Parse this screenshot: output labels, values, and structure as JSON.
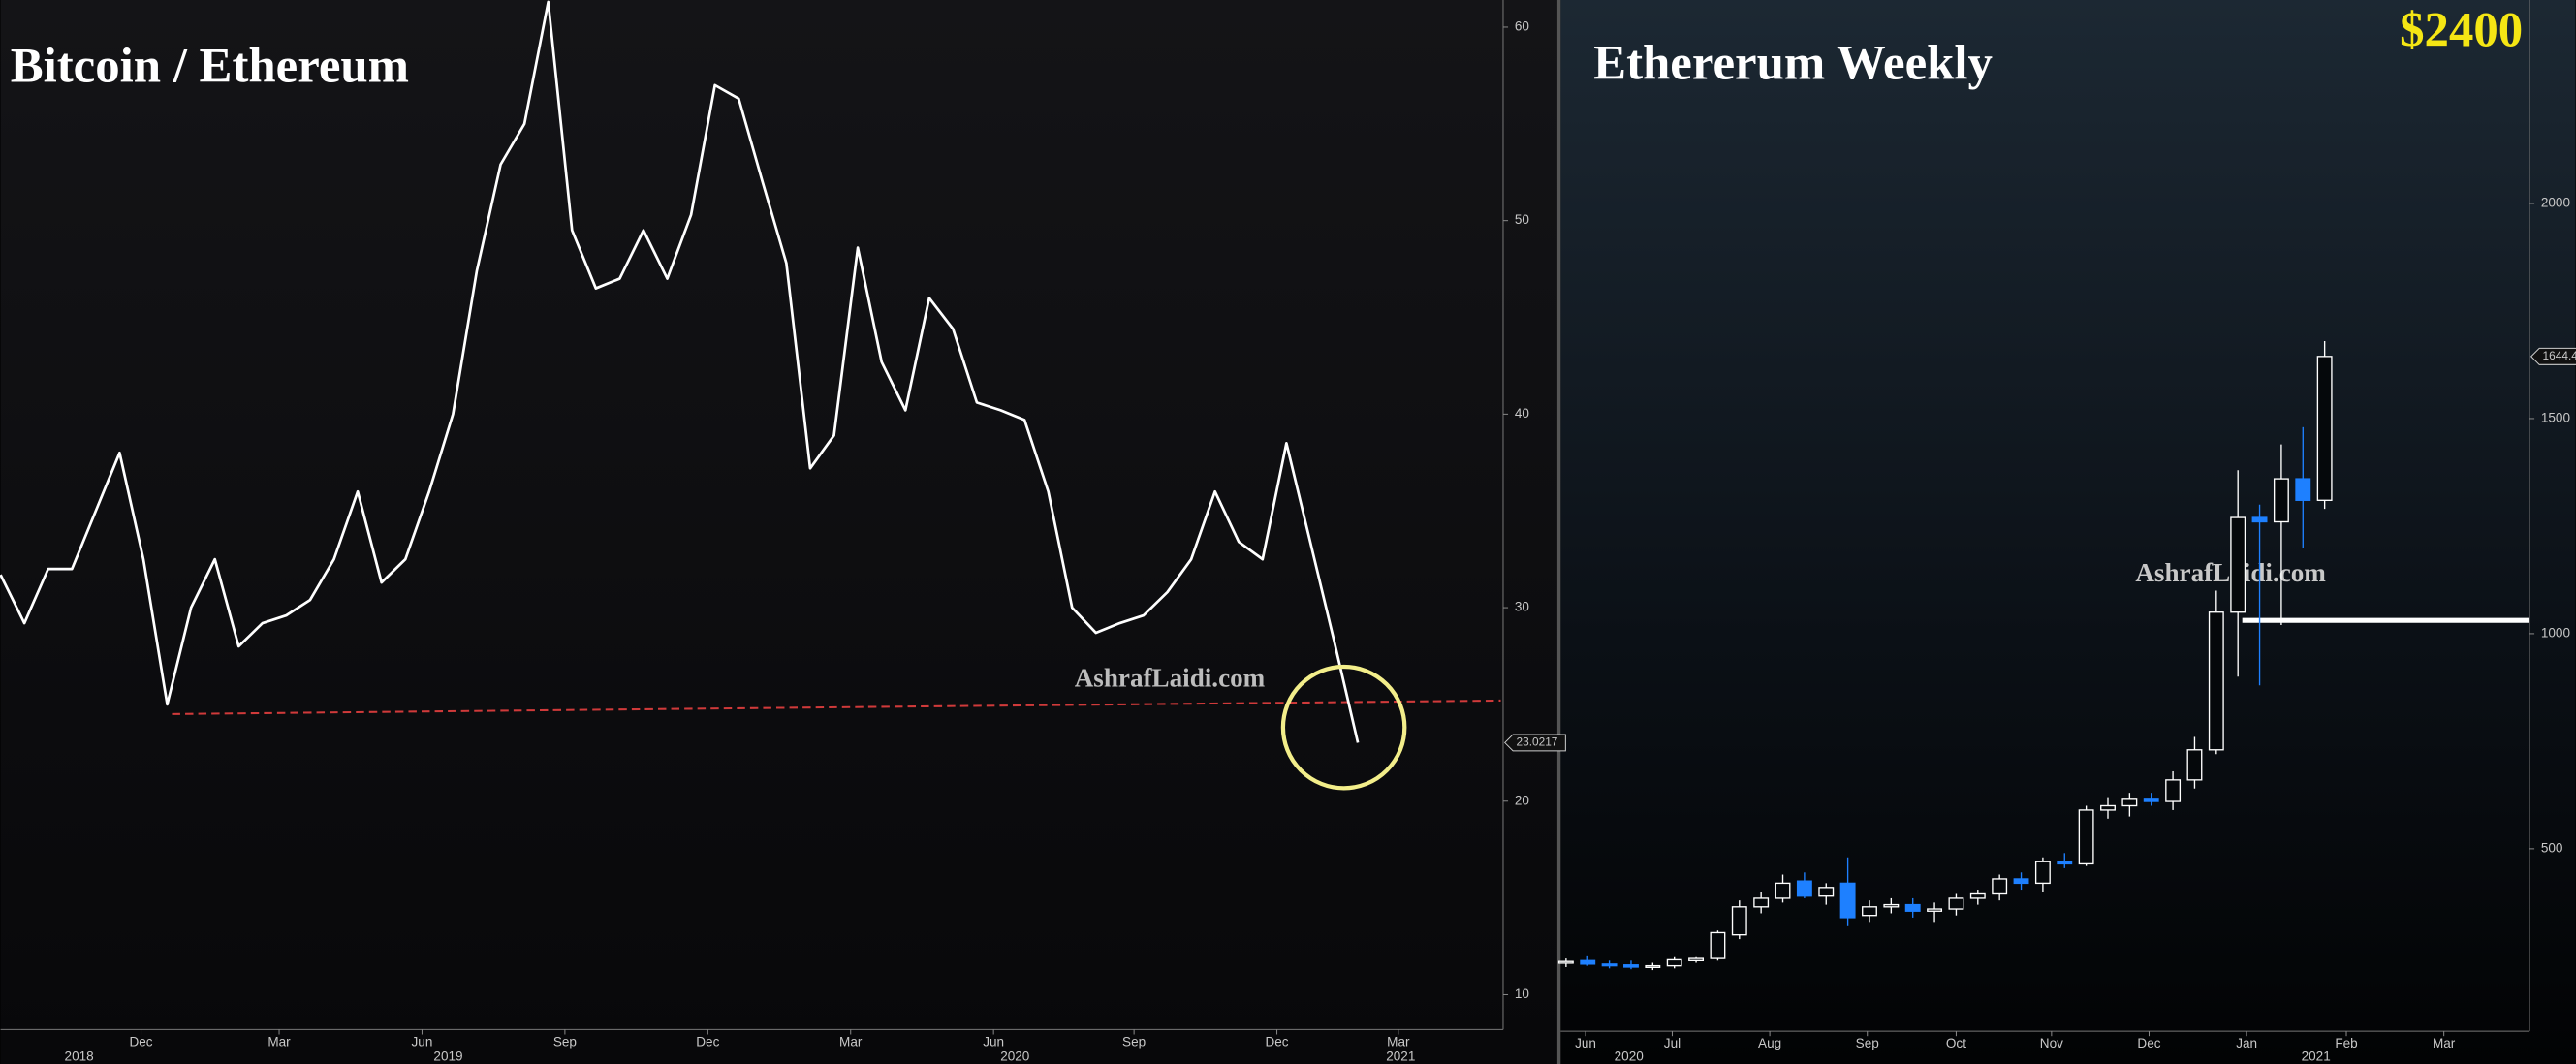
{
  "chart_data": [
    {
      "type": "line",
      "title": "Bitcoin / Ethereum",
      "watermark": "AshrafLaidi.com",
      "color": "#ffffff",
      "values": [
        31.7,
        29.2,
        32,
        32,
        35,
        38,
        32.5,
        25,
        30,
        32.5,
        28,
        29.2,
        29.6,
        30.4,
        32.5,
        36,
        31.3,
        32.5,
        36,
        40,
        47.4,
        52.9,
        55,
        61.3,
        49.5,
        46.5,
        47,
        49.5,
        47,
        50.3,
        57,
        56.3,
        52,
        47.8,
        37.2,
        38.9,
        48.6,
        42.7,
        40.2,
        46,
        44.4,
        40.6,
        40.2,
        39.7,
        36,
        30,
        28.7,
        29.2,
        29.6,
        30.8,
        32.5,
        36,
        33.4,
        32.5,
        38.5,
        33.4,
        28.3,
        23.0217
      ],
      "last_value": 23.0217,
      "xlim": [
        0,
        63.1
      ],
      "xticks": [
        {
          "value": 5.9,
          "label": "Dec"
        },
        {
          "value": 11.7,
          "label": "Mar"
        },
        {
          "value": 17.7,
          "label": "Jun"
        },
        {
          "value": 23.7,
          "label": "Sep"
        },
        {
          "value": 29.7,
          "label": "Dec"
        },
        {
          "value": 35.7,
          "label": "Mar"
        },
        {
          "value": 41.7,
          "label": "Jun"
        },
        {
          "value": 47.6,
          "label": "Sep"
        },
        {
          "value": 53.6,
          "label": "Dec"
        },
        {
          "value": 58.7,
          "label": "Mar"
        }
      ],
      "year_ticks": [
        {
          "value": 3.3,
          "label": "2018"
        },
        {
          "value": 18.8,
          "label": "2019"
        },
        {
          "value": 42.6,
          "label": "2020"
        },
        {
          "value": 58.8,
          "label": "2021"
        }
      ],
      "ylim": [
        8.2,
        61.4
      ],
      "yticks": [
        10,
        20,
        30,
        40,
        50,
        60
      ],
      "reference_line": {
        "x": [
          7.2,
          63
        ],
        "values": [
          24.5,
          25.2
        ],
        "color": "#d03a3a"
      }
    },
    {
      "type": "candlestick",
      "title": "Ethererum Weekly",
      "annotation": "$2400",
      "watermark": "AshrafLaidi.com",
      "up_color": "#ffffff",
      "down_color": "#1e80ff",
      "open": [
        235,
        240,
        232,
        230,
        226,
        228,
        240,
        245,
        300,
        365,
        385,
        425,
        390,
        420,
        345,
        365,
        370,
        355,
        360,
        385,
        395,
        430,
        420,
        470,
        465,
        590,
        600,
        615,
        610,
        660,
        730,
        1050,
        1270,
        1260,
        1360,
        1310
      ],
      "high": [
        245,
        250,
        240,
        240,
        235,
        248,
        248,
        310,
        380,
        400,
        440,
        445,
        420,
        480,
        380,
        385,
        385,
        375,
        395,
        405,
        440,
        445,
        480,
        490,
        600,
        620,
        630,
        630,
        680,
        760,
        1100,
        1380,
        1300,
        1440,
        1480,
        1680
      ],
      "low": [
        225,
        228,
        222,
        220,
        218,
        222,
        235,
        240,
        290,
        350,
        375,
        385,
        370,
        320,
        330,
        350,
        340,
        330,
        345,
        370,
        380,
        405,
        400,
        455,
        460,
        570,
        575,
        600,
        590,
        640,
        720,
        900,
        880,
        1020,
        1200,
        1290
      ],
      "close": [
        238,
        232,
        228,
        225,
        228,
        242,
        245,
        305,
        365,
        385,
        420,
        390,
        410,
        340,
        365,
        370,
        355,
        360,
        385,
        395,
        430,
        420,
        470,
        465,
        590,
        600,
        615,
        610,
        660,
        730,
        1050,
        1270,
        1260,
        1360,
        1310,
        1644.4
      ],
      "last_value": 1644.4,
      "xlim": [
        -0.25,
        44.45
      ],
      "xticks": [
        {
          "value": 0.9,
          "label": "Jun"
        },
        {
          "value": 4.9,
          "label": "Jul"
        },
        {
          "value": 9.4,
          "label": "Aug"
        },
        {
          "value": 13.9,
          "label": "Sep"
        },
        {
          "value": 18,
          "label": "Oct"
        },
        {
          "value": 22.4,
          "label": "Nov"
        },
        {
          "value": 26.9,
          "label": "Dec"
        },
        {
          "value": 31.4,
          "label": "Jan"
        },
        {
          "value": 36,
          "label": "Feb"
        },
        {
          "value": 40.5,
          "label": "Mar"
        }
      ],
      "year_ticks": [
        {
          "value": 2.9,
          "label": "2020"
        },
        {
          "value": 34.6,
          "label": "2021"
        }
      ],
      "ylim": [
        76,
        2473
      ],
      "yticks": [
        500,
        1000,
        1500,
        2000
      ],
      "reference_line": {
        "x": [
          31.2,
          44.45
        ],
        "values": [
          1031,
          1031
        ],
        "color": "#ffffff"
      }
    }
  ]
}
